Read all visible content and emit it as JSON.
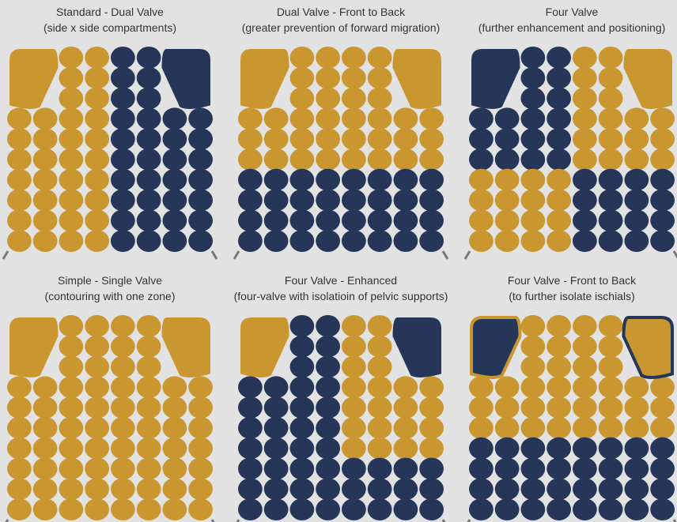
{
  "panels": [
    {
      "title": "Standard - Dual Valve",
      "subtitle": "(side x side compartments)"
    },
    {
      "title": "Dual Valve - Front to Back",
      "subtitle": "(greater prevention of forward migration)"
    },
    {
      "title": "Four Valve",
      "subtitle": "(further enhancement and positioning)"
    },
    {
      "title": "Simple - Single Valve",
      "subtitle": "(contouring with one zone)"
    },
    {
      "title": "Four Valve - Enhanced",
      "subtitle": "(four-valve with isolatioin of pelvic supports)"
    },
    {
      "title": "Four Valve - Front to Back",
      "subtitle": "(to further isolate ischials)"
    }
  ]
}
